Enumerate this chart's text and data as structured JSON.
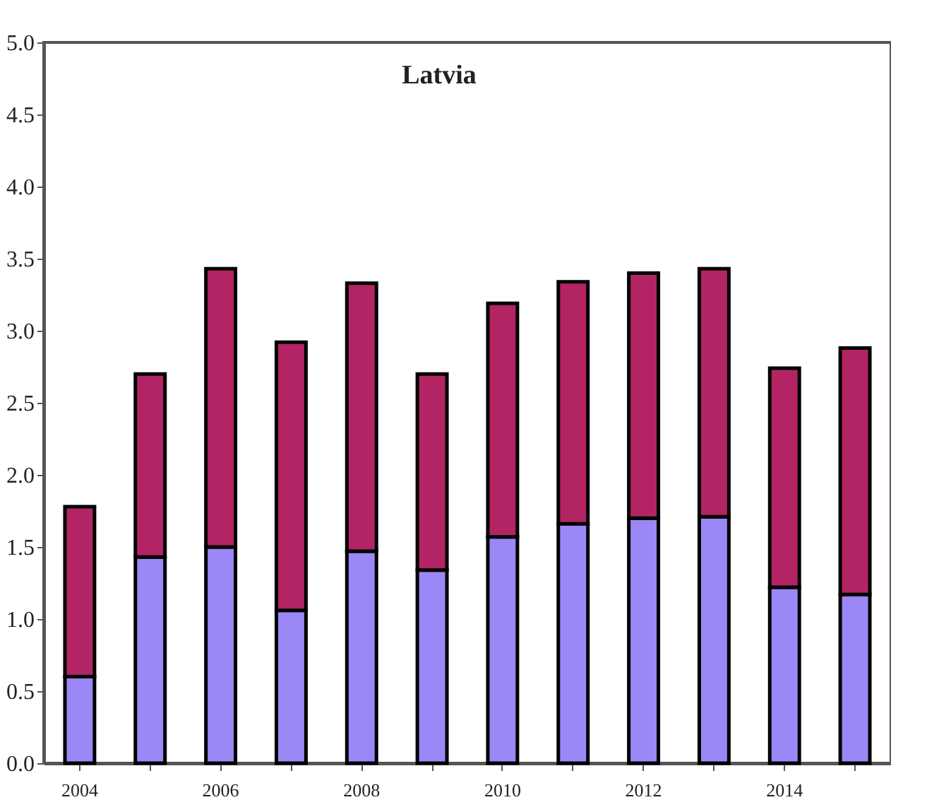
{
  "chart_data": {
    "type": "bar",
    "title": "Latvia",
    "stacked": true,
    "categories": [
      "2004",
      null,
      "2006",
      null,
      "2008",
      null,
      "2010",
      null,
      "2012",
      null,
      "2014",
      null
    ],
    "series": [
      {
        "color": "#9b87f5",
        "values": [
          0.6,
          1.43,
          1.5,
          1.06,
          1.47,
          1.34,
          1.57,
          1.66,
          1.7,
          1.71,
          1.22,
          1.17
        ]
      },
      {
        "color": "#b22463",
        "values": [
          1.18,
          1.27,
          1.93,
          1.86,
          1.86,
          1.36,
          1.62,
          1.68,
          1.7,
          1.72,
          1.52,
          1.71
        ]
      }
    ],
    "ylim": [
      0,
      5
    ],
    "yticks": [
      {
        "value": 0,
        "label": "0.0"
      },
      0.5,
      {
        "value": 1,
        "label": "1.0"
      },
      1.5,
      {
        "value": 2,
        "label": "2.0"
      },
      2.5,
      {
        "value": 3,
        "label": "3.0"
      },
      3.5,
      {
        "value": 4,
        "label": "4.0"
      },
      4.5,
      {
        "value": 5,
        "label": "5.0"
      }
    ],
    "grid": false,
    "legend": false
  }
}
